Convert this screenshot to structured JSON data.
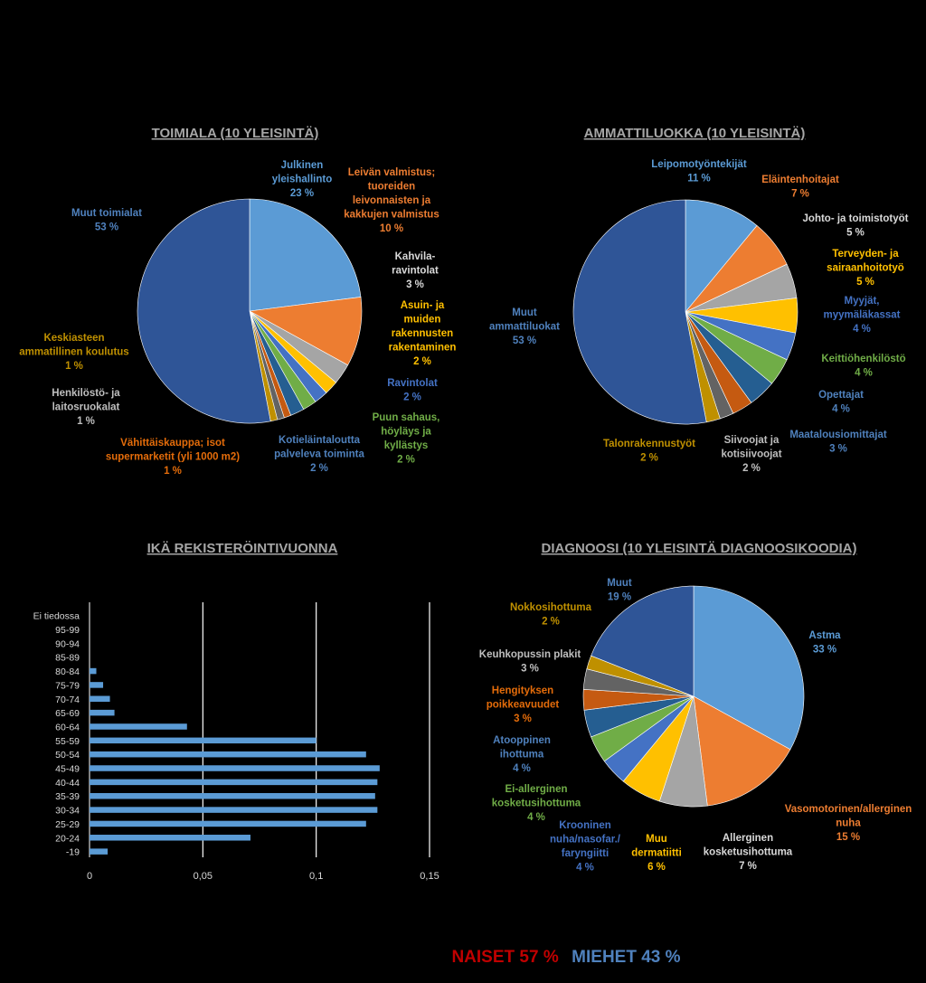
{
  "colors": {
    "background": "#000000",
    "title": "#a6a6a6",
    "bar": "#5b9bd5",
    "gridline": "#ffffff",
    "naiset": "#c00000",
    "miehet": "#4f81bd"
  },
  "chart_data": [
    {
      "type": "pie",
      "title": "TOIMIALA (10 YLEISINTÄ)",
      "slices": [
        {
          "label": [
            "Julkinen",
            "yleishallinto"
          ],
          "value_label": "23 %",
          "value": 23,
          "color": "#5b9bd5",
          "text_color": "#5b9bd5"
        },
        {
          "label": [
            "Leivän valmistus;",
            "tuoreiden",
            "leivonnaisten ja",
            "kakkujen valmistus"
          ],
          "value_label": "10 %",
          "value": 10,
          "color": "#ed7d31",
          "text_color": "#ed7d31"
        },
        {
          "label": [
            "Kahvila-",
            "ravintolat"
          ],
          "value_label": "3 %",
          "value": 3,
          "color": "#a5a5a5",
          "text_color": "#d9d9d9"
        },
        {
          "label": [
            "Asuin- ja",
            "muiden",
            "rakennusten",
            "rakentaminen"
          ],
          "value_label": "2 %",
          "value": 2,
          "color": "#ffc000",
          "text_color": "#ffc000"
        },
        {
          "label": [
            "Ravintolat"
          ],
          "value_label": "2 %",
          "value": 2,
          "color": "#4472c4",
          "text_color": "#4472c4"
        },
        {
          "label": [
            "Puun sahaus,",
            "höyläys ja",
            "kyllästys"
          ],
          "value_label": "2 %",
          "value": 2,
          "color": "#70ad47",
          "text_color": "#70ad47"
        },
        {
          "label": [
            "Kotieläintaloutta",
            "palveleva toiminta"
          ],
          "value_label": "2 %",
          "value": 2,
          "color": "#255e91",
          "text_color": "#4f81bd"
        },
        {
          "label": [
            "Vähittäiskauppa; isot",
            "supermarketit (yli 1000 m2)"
          ],
          "value_label": "1 %",
          "value": 1,
          "color": "#c55a11",
          "text_color": "#e46c0a"
        },
        {
          "label": [
            "Henkilöstö- ja",
            "laitosruokalat"
          ],
          "value_label": "1 %",
          "value": 1,
          "color": "#636363",
          "text_color": "#bfbfbf"
        },
        {
          "label": [
            "Keskiasteen",
            "ammatillinen koulutus"
          ],
          "value_label": "1 %",
          "value": 1,
          "color": "#bf9000",
          "text_color": "#bf9000"
        },
        {
          "label": [
            "Muut toimialat"
          ],
          "value_label": "53 %",
          "value": 53,
          "color": "#2f5597",
          "text_color": "#4f81bd"
        }
      ]
    },
    {
      "type": "pie",
      "title": "AMMATTILUOKKA (10 YLEISINTÄ)",
      "slices": [
        {
          "label": [
            "Leipomotyöntekijät"
          ],
          "value_label": "11 %",
          "value": 11,
          "color": "#5b9bd5",
          "text_color": "#5b9bd5"
        },
        {
          "label": [
            "Eläintenhoitajat"
          ],
          "value_label": "7 %",
          "value": 7,
          "color": "#ed7d31",
          "text_color": "#ed7d31"
        },
        {
          "label": [
            "Johto- ja toimistotyöt"
          ],
          "value_label": "5 %",
          "value": 5,
          "color": "#a5a5a5",
          "text_color": "#d9d9d9"
        },
        {
          "label": [
            "Terveyden- ja",
            "sairaanhoitotyö"
          ],
          "value_label": "5 %",
          "value": 5,
          "color": "#ffc000",
          "text_color": "#ffc000"
        },
        {
          "label": [
            "Myyjät,",
            "myymäläkassat"
          ],
          "value_label": "4 %",
          "value": 4,
          "color": "#4472c4",
          "text_color": "#4472c4"
        },
        {
          "label": [
            "Keittiöhenkilöstö"
          ],
          "value_label": "4 %",
          "value": 4,
          "color": "#70ad47",
          "text_color": "#70ad47"
        },
        {
          "label": [
            "Opettajat"
          ],
          "value_label": "4 %",
          "value": 4,
          "color": "#255e91",
          "text_color": "#4f81bd"
        },
        {
          "label": [
            "Maatalousiomittajat"
          ],
          "value_label": "3 %",
          "value": 3,
          "color": "#c55a11",
          "text_color": "#4f81bd"
        },
        {
          "label": [
            "Siivoojat ja",
            "kotisiivoojat"
          ],
          "value_label": "2 %",
          "value": 2,
          "color": "#636363",
          "text_color": "#bfbfbf"
        },
        {
          "label": [
            "Talonrakennustyöt"
          ],
          "value_label": "2 %",
          "value": 2,
          "color": "#bf9000",
          "text_color": "#bf9000"
        },
        {
          "label": [
            "Muut",
            "ammattiluokat"
          ],
          "value_label": "53 %",
          "value": 53,
          "color": "#2f5597",
          "text_color": "#4f81bd"
        }
      ]
    },
    {
      "type": "bar",
      "orientation": "horizontal",
      "title": "IKÄ REKISTERÖINTIVUONNA",
      "categories": [
        "Ei tiedossa",
        "95-99",
        "90-94",
        "85-89",
        "80-84",
        "75-79",
        "70-74",
        "65-69",
        "60-64",
        "55-59",
        "50-54",
        "45-49",
        "40-44",
        "35-39",
        "30-34",
        "25-29",
        "20-24",
        "-19"
      ],
      "values": [
        0,
        0,
        0,
        0,
        0.003,
        0.006,
        0.009,
        0.011,
        0.043,
        0.1,
        0.122,
        0.128,
        0.127,
        0.126,
        0.127,
        0.122,
        0.071,
        0.008
      ],
      "xlim": [
        0,
        0.15
      ],
      "xticks": [
        "0",
        "0,05",
        "0,1",
        "0,15"
      ],
      "grid": true
    },
    {
      "type": "pie",
      "title": "DIAGNOOSI (10 YLEISINTÄ DIAGNOOSIKOODIA)",
      "slices": [
        {
          "label": [
            "Astma"
          ],
          "value_label": "33 %",
          "value": 33,
          "color": "#5b9bd5",
          "text_color": "#5b9bd5"
        },
        {
          "label": [
            "Vasomotorinen/allerginen",
            "nuha"
          ],
          "value_label": "15 %",
          "value": 15,
          "color": "#ed7d31",
          "text_color": "#ed7d31"
        },
        {
          "label": [
            "Allerginen",
            "kosketusihottuma"
          ],
          "value_label": "7 %",
          "value": 7,
          "color": "#a5a5a5",
          "text_color": "#d9d9d9"
        },
        {
          "label": [
            "Muu",
            "dermatiitti"
          ],
          "value_label": "6 %",
          "value": 6,
          "color": "#ffc000",
          "text_color": "#ffc000"
        },
        {
          "label": [
            "Krooninen",
            "nuha/nasofar./",
            "faryngiitti"
          ],
          "value_label": "4 %",
          "value": 4,
          "color": "#4472c4",
          "text_color": "#4472c4"
        },
        {
          "label": [
            "Ei-allerginen",
            "kosketusihottuma"
          ],
          "value_label": "4 %",
          "value": 4,
          "color": "#70ad47",
          "text_color": "#70ad47"
        },
        {
          "label": [
            "Atooppinen",
            "ihottuma"
          ],
          "value_label": "4 %",
          "value": 4,
          "color": "#255e91",
          "text_color": "#4f81bd"
        },
        {
          "label": [
            "Hengityksen",
            "poikkeavuudet"
          ],
          "value_label": "3 %",
          "value": 3,
          "color": "#c55a11",
          "text_color": "#e46c0a"
        },
        {
          "label": [
            "Keuhkopussin plakit"
          ],
          "value_label": "3 %",
          "value": 3,
          "color": "#636363",
          "text_color": "#bfbfbf"
        },
        {
          "label": [
            "Nokkosihottuma"
          ],
          "value_label": "2 %",
          "value": 2,
          "color": "#bf9000",
          "text_color": "#bf9000"
        },
        {
          "label": [
            "Muut"
          ],
          "value_label": "19 %",
          "value": 19,
          "color": "#2f5597",
          "text_color": "#4f81bd"
        }
      ]
    }
  ],
  "footer": {
    "naiset": "NAISET 57 %",
    "miehet": "MIEHET 43 %"
  }
}
